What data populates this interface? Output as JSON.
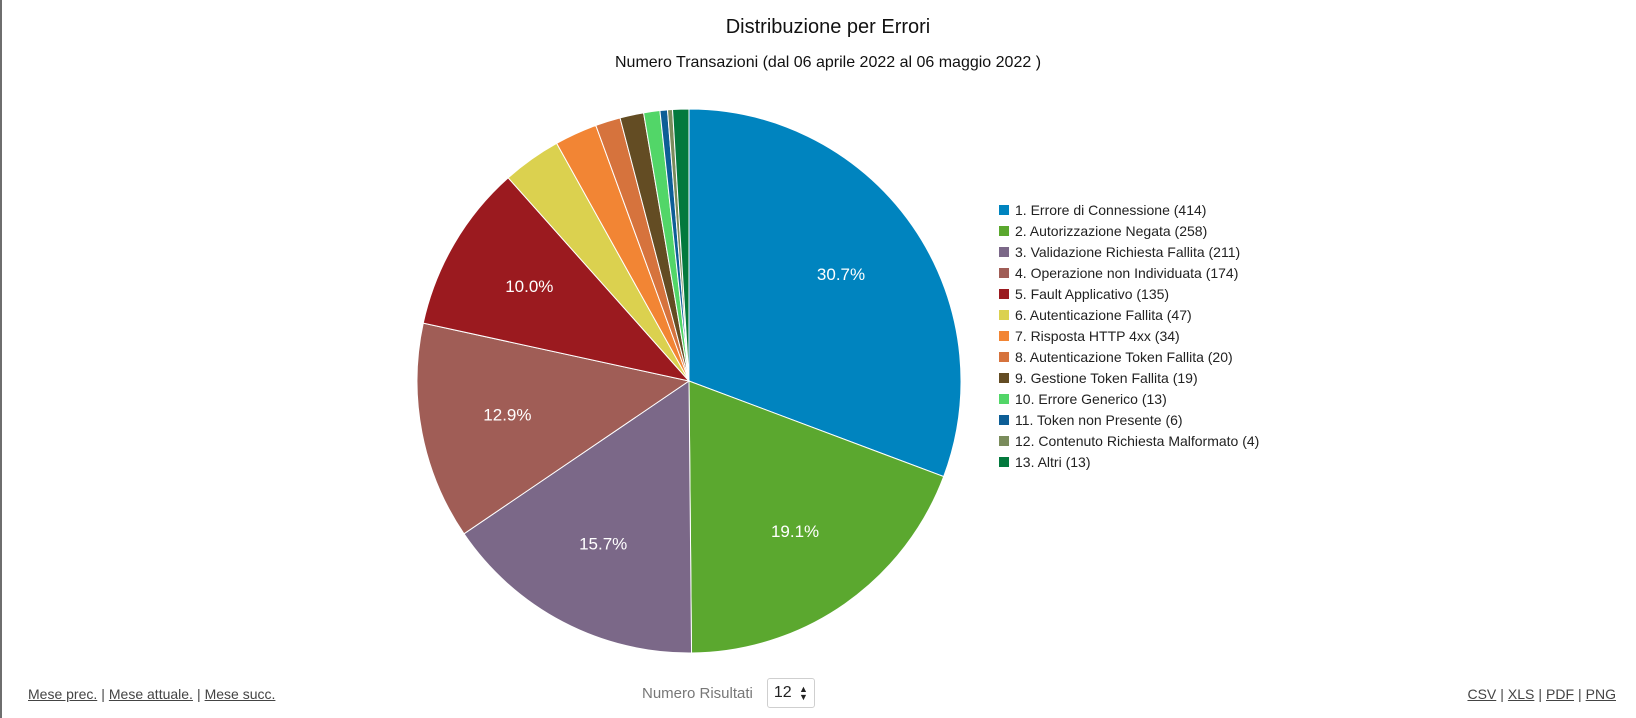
{
  "colors": {
    "slices": [
      "#0084bf",
      "#5ba82f",
      "#7b6888",
      "#a05d56",
      "#9b1a1f",
      "#dbd14f",
      "#f28534",
      "#d6733d",
      "#634c23",
      "#52d668",
      "#0d5e96",
      "#7a8c5c",
      "#03793d"
    ]
  },
  "chart_data": {
    "type": "pie",
    "title": "Distribuzione per Errori",
    "subtitle": "Numero Transazioni (dal 06 aprile 2022 al 06 maggio 2022 )",
    "categories": [
      "1. Errore di Connessione (414)",
      "2. Autorizzazione Negata (258)",
      "3. Validazione Richiesta Fallita (211)",
      "4. Operazione non Individuata (174)",
      "5. Fault Applicativo (135)",
      "6. Autenticazione Fallita (47)",
      "7. Risposta HTTP 4xx (34)",
      "8. Autenticazione Token Fallita (20)",
      "9. Gestione Token Fallita (19)",
      "10. Errore Generico (13)",
      "11. Token non Presente (6)",
      "12. Contenuto Richiesta Malformato (4)",
      "13. Altri (13)"
    ],
    "values": [
      414,
      258,
      211,
      174,
      135,
      47,
      34,
      20,
      19,
      13,
      6,
      4,
      13
    ],
    "data_labels": [
      "30.7%",
      "19.1%",
      "15.7%",
      "12.9%",
      "10.0%",
      "",
      "",
      "",
      "",
      "",
      "",
      "",
      ""
    ],
    "legend_position": "right"
  },
  "footer": {
    "nav": {
      "prev_label": "Mese prec.",
      "current_label": "Mese attuale.",
      "next_label": "Mese succ.",
      "separator": "|"
    },
    "results": {
      "label": "Numero Risultati",
      "selected_value": "12"
    },
    "export": {
      "csv_label": "CSV",
      "xls_label": "XLS",
      "pdf_label": "PDF",
      "png_label": "PNG",
      "separator": "|"
    }
  }
}
